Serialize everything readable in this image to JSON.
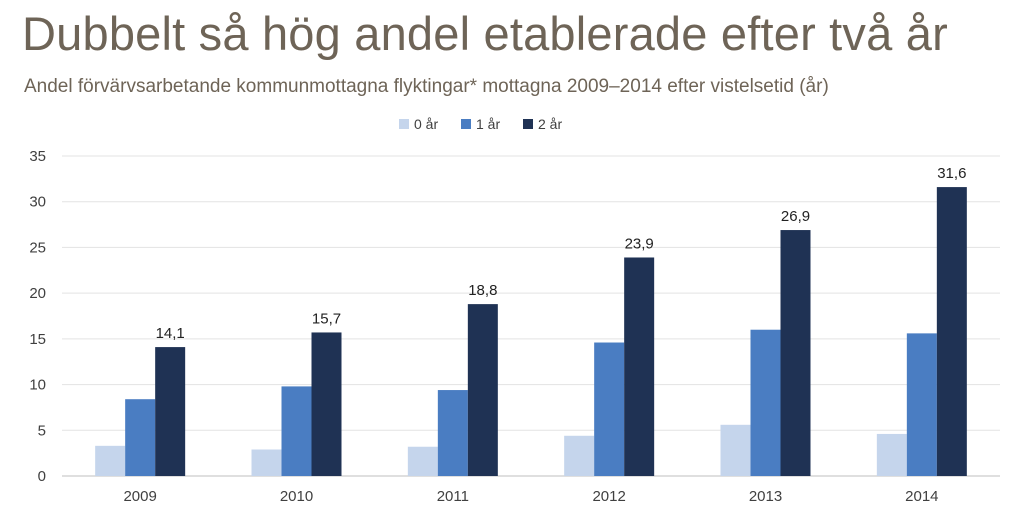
{
  "title": "Dubbelt så hög andel etablerade efter två år",
  "subtitle": "Andel förvärvsarbetande kommunmottagna flyktingar* mottagna 2009–2014 efter vistelsetid (år)",
  "chart_data": {
    "type": "bar",
    "categories": [
      "2009",
      "2010",
      "2011",
      "2012",
      "2013",
      "2014"
    ],
    "series": [
      {
        "name": "0 år",
        "color": "#c5d5ec",
        "values": [
          3.3,
          2.9,
          3.2,
          4.4,
          5.6,
          4.6
        ]
      },
      {
        "name": "1 år",
        "color": "#4a7dc2",
        "values": [
          8.4,
          9.8,
          9.4,
          14.6,
          16.0,
          15.6
        ]
      },
      {
        "name": "2 år",
        "color": "#1f3254",
        "values": [
          14.1,
          15.7,
          18.8,
          23.9,
          26.9,
          31.6
        ]
      }
    ],
    "data_labels": [
      "14,1",
      "15,7",
      "18,8",
      "23,9",
      "26,9",
      "31,6"
    ],
    "yticks": [
      "0",
      "5",
      "10",
      "15",
      "20",
      "25",
      "30",
      "35"
    ],
    "ylim": [
      0,
      35
    ],
    "grid": true,
    "legend_position": "top-center"
  }
}
